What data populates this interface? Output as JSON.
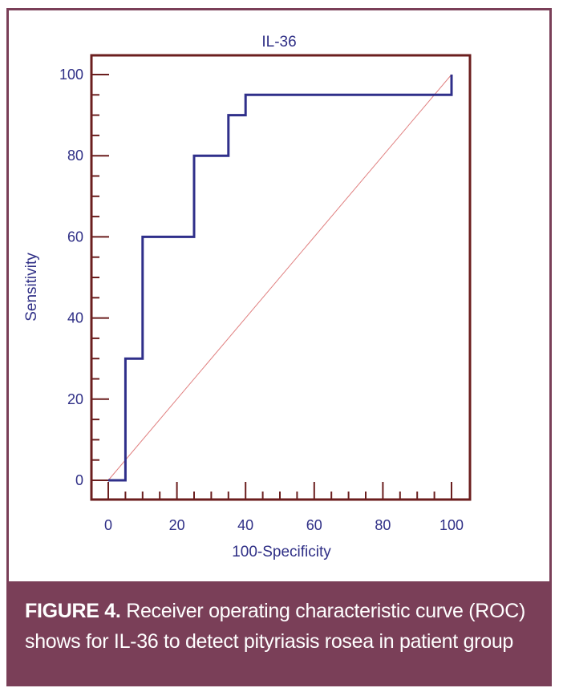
{
  "chart_data": {
    "type": "line",
    "title": "IL-36",
    "xlabel": "100-Specificity",
    "ylabel": "Sensitivity",
    "xlim": [
      0,
      100
    ],
    "ylim": [
      -5,
      105
    ],
    "x_ticks": [
      0,
      20,
      40,
      60,
      80,
      100
    ],
    "y_ticks": [
      0,
      20,
      40,
      60,
      80,
      100
    ],
    "grid": false,
    "colors": {
      "roc": "#2f2f8a",
      "diagonal": "#e08080",
      "axes": "#6b1e1e",
      "text": "#2f2f86"
    },
    "series": [
      {
        "values_x": [
          0,
          5,
          5,
          10,
          10,
          25,
          25,
          35,
          35,
          40,
          40,
          100,
          100
        ],
        "values_y": [
          0,
          0,
          30,
          30,
          60,
          60,
          80,
          80,
          90,
          90,
          95,
          95,
          100
        ]
      }
    ],
    "diagonal": {
      "x": [
        0,
        100
      ],
      "y": [
        0,
        100
      ]
    }
  },
  "caption": {
    "label": "FIGURE 4.",
    "text": " Receiver operating characteristic curve (ROC) shows for IL-36 to detect pityriasis rosea in patient group"
  }
}
